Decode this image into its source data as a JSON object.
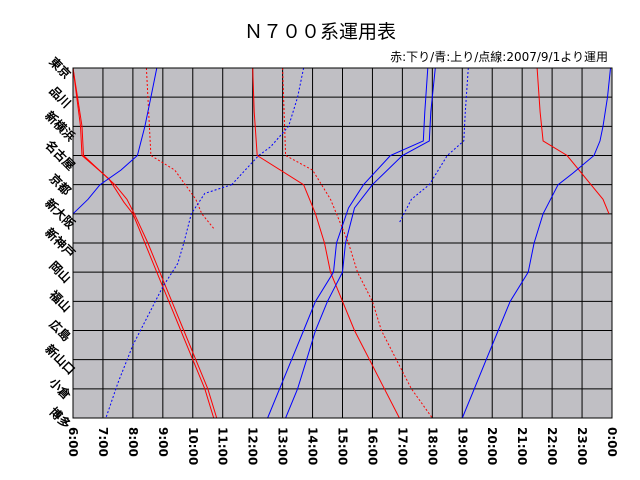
{
  "chart_data": {
    "type": "line",
    "title": "Ｎ７００系運用表",
    "subtitle": "赤:下り/青:上り/点線:2007/9/1より運用",
    "xlabel": "",
    "ylabel": "",
    "x_ticks": [
      "6:00",
      "7:00",
      "8:00",
      "9:00",
      "10:00",
      "11:00",
      "12:00",
      "13:00",
      "14:00",
      "15:00",
      "16:00",
      "17:00",
      "18:00",
      "19:00",
      "20:00",
      "21:00",
      "22:00",
      "23:00",
      "0:00"
    ],
    "x_range": [
      6,
      24
    ],
    "stations": [
      "東京",
      "品川",
      "新横浜",
      "名古屋",
      "京都",
      "新大阪",
      "新神戸",
      "岡山",
      "福山",
      "広島",
      "新山口",
      "小倉",
      "博多"
    ],
    "grid": true,
    "legend": "top-right",
    "colors": {
      "down": "#ff0000",
      "up": "#0000ff",
      "background": "#c0bfc4"
    },
    "series": [
      {
        "direction": "down",
        "style": "solid",
        "points": [
          [
            6.0,
            0
          ],
          [
            6.3,
            2
          ],
          [
            6.35,
            3
          ],
          [
            7.4,
            4
          ],
          [
            7.8,
            4.5
          ],
          [
            8.05,
            5
          ],
          [
            8.5,
            6
          ],
          [
            8.9,
            7
          ],
          [
            9.3,
            8
          ],
          [
            9.7,
            9
          ],
          [
            10.1,
            10
          ],
          [
            10.5,
            11
          ],
          [
            10.8,
            12
          ]
        ]
      },
      {
        "direction": "down",
        "style": "solid",
        "points": [
          [
            6.0,
            0
          ],
          [
            6.25,
            2
          ],
          [
            6.3,
            3
          ],
          [
            7.2,
            3.8
          ],
          [
            7.7,
            4.6
          ],
          [
            8.0,
            5
          ],
          [
            8.4,
            6
          ],
          [
            8.8,
            7
          ],
          [
            9.2,
            8
          ],
          [
            9.6,
            9
          ],
          [
            10.0,
            10
          ],
          [
            10.4,
            11
          ],
          [
            10.7,
            12
          ]
        ]
      },
      {
        "direction": "down",
        "style": "dotted",
        "points": [
          [
            8.45,
            0
          ],
          [
            8.55,
            2
          ],
          [
            8.6,
            3
          ],
          [
            9.4,
            3.5
          ],
          [
            10.1,
            4.5
          ],
          [
            10.3,
            5
          ],
          [
            10.7,
            5.5
          ]
        ]
      },
      {
        "direction": "up",
        "style": "solid",
        "points": [
          [
            8.8,
            0
          ],
          [
            8.6,
            1
          ],
          [
            8.4,
            2
          ],
          [
            8.15,
            3
          ],
          [
            7.6,
            3.5
          ],
          [
            6.9,
            4
          ],
          [
            6.5,
            4.5
          ],
          [
            6.0,
            5
          ]
        ]
      },
      {
        "direction": "up",
        "style": "dotted",
        "points": [
          [
            11.3,
            4
          ],
          [
            10.4,
            4.3
          ],
          [
            9.95,
            5
          ],
          [
            9.7,
            6
          ],
          [
            9.5,
            6.7
          ],
          [
            9.0,
            7.5
          ],
          [
            8.5,
            8.5
          ],
          [
            8.0,
            9.5
          ],
          [
            7.5,
            10.8
          ],
          [
            7.1,
            12
          ]
        ]
      },
      {
        "direction": "down",
        "style": "solid",
        "points": [
          [
            12.0,
            0
          ],
          [
            12.05,
            1.5
          ],
          [
            12.15,
            3
          ],
          [
            13.7,
            4
          ],
          [
            14.1,
            5
          ],
          [
            14.4,
            6
          ],
          [
            14.6,
            7
          ],
          [
            15.0,
            8
          ],
          [
            15.4,
            9
          ],
          [
            15.9,
            10
          ],
          [
            16.4,
            11
          ],
          [
            16.9,
            12
          ]
        ]
      },
      {
        "direction": "down",
        "style": "dotted",
        "points": [
          [
            13.0,
            0
          ],
          [
            13.05,
            1.5
          ],
          [
            13.1,
            3
          ],
          [
            14.0,
            3.5
          ],
          [
            14.6,
            4.5
          ],
          [
            14.8,
            5
          ],
          [
            15.2,
            6
          ],
          [
            15.5,
            7
          ],
          [
            16.0,
            8
          ],
          [
            16.3,
            9
          ],
          [
            16.8,
            10
          ],
          [
            17.3,
            11
          ],
          [
            18.0,
            12
          ]
        ]
      },
      {
        "direction": "up",
        "style": "dotted",
        "points": [
          [
            13.7,
            0
          ],
          [
            13.5,
            1
          ],
          [
            13.2,
            2
          ],
          [
            12.6,
            2.7
          ],
          [
            12.2,
            3
          ],
          [
            11.3,
            4
          ]
        ]
      },
      {
        "direction": "up",
        "style": "solid",
        "points": [
          [
            18.1,
            0
          ],
          [
            17.95,
            1.5
          ],
          [
            17.9,
            2.5
          ],
          [
            17.0,
            3
          ],
          [
            16.0,
            4
          ],
          [
            15.4,
            4.8
          ],
          [
            15.1,
            6
          ],
          [
            15.0,
            7
          ],
          [
            14.5,
            8
          ],
          [
            14.1,
            9
          ],
          [
            13.8,
            10
          ],
          [
            13.5,
            11
          ],
          [
            13.1,
            12
          ]
        ]
      },
      {
        "direction": "up",
        "style": "solid",
        "points": [
          [
            17.85,
            0
          ],
          [
            17.75,
            1.5
          ],
          [
            17.7,
            2.5
          ],
          [
            16.6,
            3
          ],
          [
            15.7,
            4
          ],
          [
            15.2,
            4.8
          ],
          [
            14.8,
            6
          ],
          [
            14.7,
            7
          ],
          [
            14.1,
            8
          ],
          [
            13.7,
            9
          ],
          [
            13.3,
            10
          ],
          [
            12.9,
            11
          ],
          [
            12.5,
            12
          ]
        ]
      },
      {
        "direction": "up",
        "style": "dotted",
        "points": [
          [
            19.2,
            0
          ],
          [
            19.1,
            1.5
          ],
          [
            19.05,
            2.5
          ],
          [
            18.5,
            3
          ],
          [
            17.9,
            4
          ],
          [
            17.3,
            4.5
          ],
          [
            16.9,
            5.3
          ]
        ]
      },
      {
        "direction": "down",
        "style": "solid",
        "points": [
          [
            21.5,
            0
          ],
          [
            21.6,
            1.5
          ],
          [
            21.7,
            2.5
          ],
          [
            22.5,
            3
          ],
          [
            23.3,
            4
          ],
          [
            23.7,
            4.5
          ],
          [
            23.9,
            5
          ]
        ]
      },
      {
        "direction": "up",
        "style": "solid",
        "points": [
          [
            23.95,
            0
          ],
          [
            23.85,
            1
          ],
          [
            23.7,
            2
          ],
          [
            23.6,
            2.5
          ],
          [
            23.4,
            3
          ],
          [
            22.7,
            3.6
          ],
          [
            22.2,
            4
          ],
          [
            21.7,
            5
          ],
          [
            21.4,
            6
          ],
          [
            21.2,
            7
          ],
          [
            20.6,
            8
          ],
          [
            20.2,
            9
          ],
          [
            19.8,
            10
          ],
          [
            19.4,
            11
          ],
          [
            19.0,
            12
          ]
        ]
      }
    ]
  }
}
